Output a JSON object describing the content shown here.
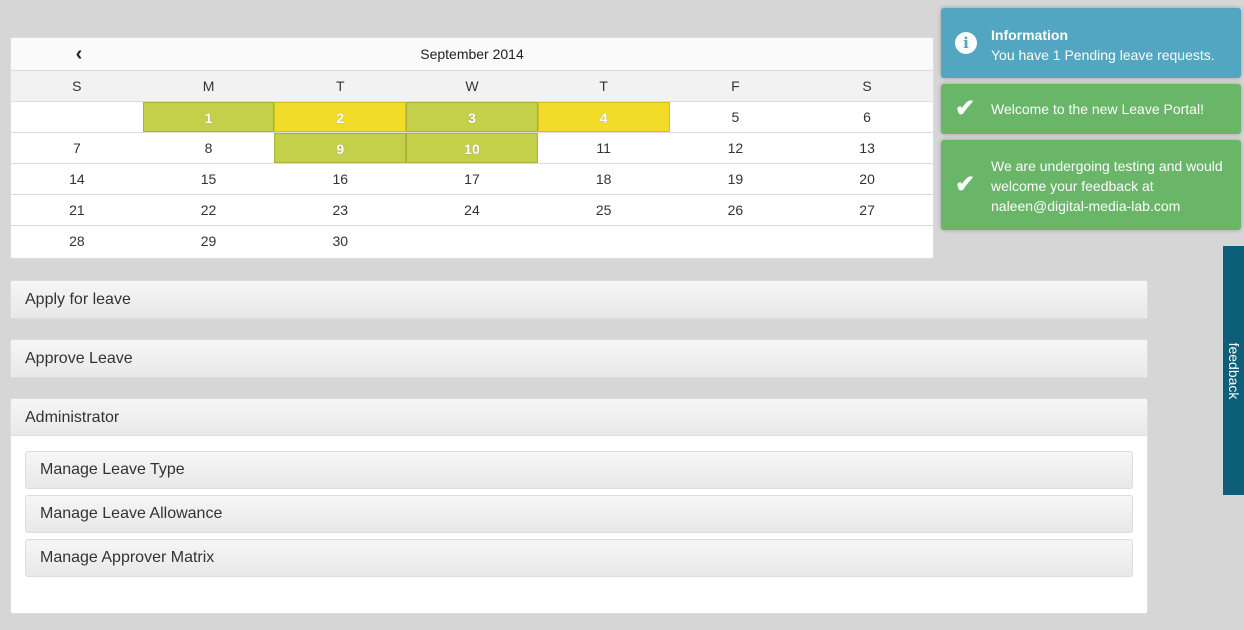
{
  "calendar": {
    "month_label": "September 2014",
    "prev_icon": "chevron-left-icon",
    "weekdays": [
      "S",
      "M",
      "T",
      "W",
      "T",
      "F",
      "S"
    ],
    "weeks": [
      [
        "",
        "1",
        "2",
        "3",
        "4",
        "5",
        "6"
      ],
      [
        "7",
        "8",
        "9",
        "10",
        "11",
        "12",
        "13"
      ],
      [
        "14",
        "15",
        "16",
        "17",
        "18",
        "19",
        "20"
      ],
      [
        "21",
        "22",
        "23",
        "24",
        "25",
        "26",
        "27"
      ],
      [
        "28",
        "29",
        "30",
        "",
        "",
        "",
        ""
      ]
    ],
    "highlight_colors": {
      "green": "#c4cf4a",
      "yellow": "#f2dc2a"
    },
    "highlighted": {
      "1": "green",
      "2": "yellow",
      "3": "green",
      "4": "yellow",
      "9": "green",
      "10": "green"
    }
  },
  "panels": {
    "apply": "Apply for leave",
    "approve": "Approve Leave",
    "admin": "Administrator",
    "admin_items": [
      "Manage Leave Type",
      "Manage Leave Allowance",
      "Manage Approver Matrix"
    ]
  },
  "toasts": [
    {
      "title": "Information",
      "message": "You have 1 Pending leave requests.",
      "icon": "info-icon",
      "color": "#4aa3c0"
    },
    {
      "message": "Welcome to the new Leave Portal!",
      "icon": "check-icon",
      "color": "#62b461"
    },
    {
      "message": "We are undergoing testing and would welcome your feedback at naleen@digital-media-lab.com",
      "icon": "check-icon",
      "color": "#62b461"
    }
  ],
  "feedback_tab": "feedback"
}
